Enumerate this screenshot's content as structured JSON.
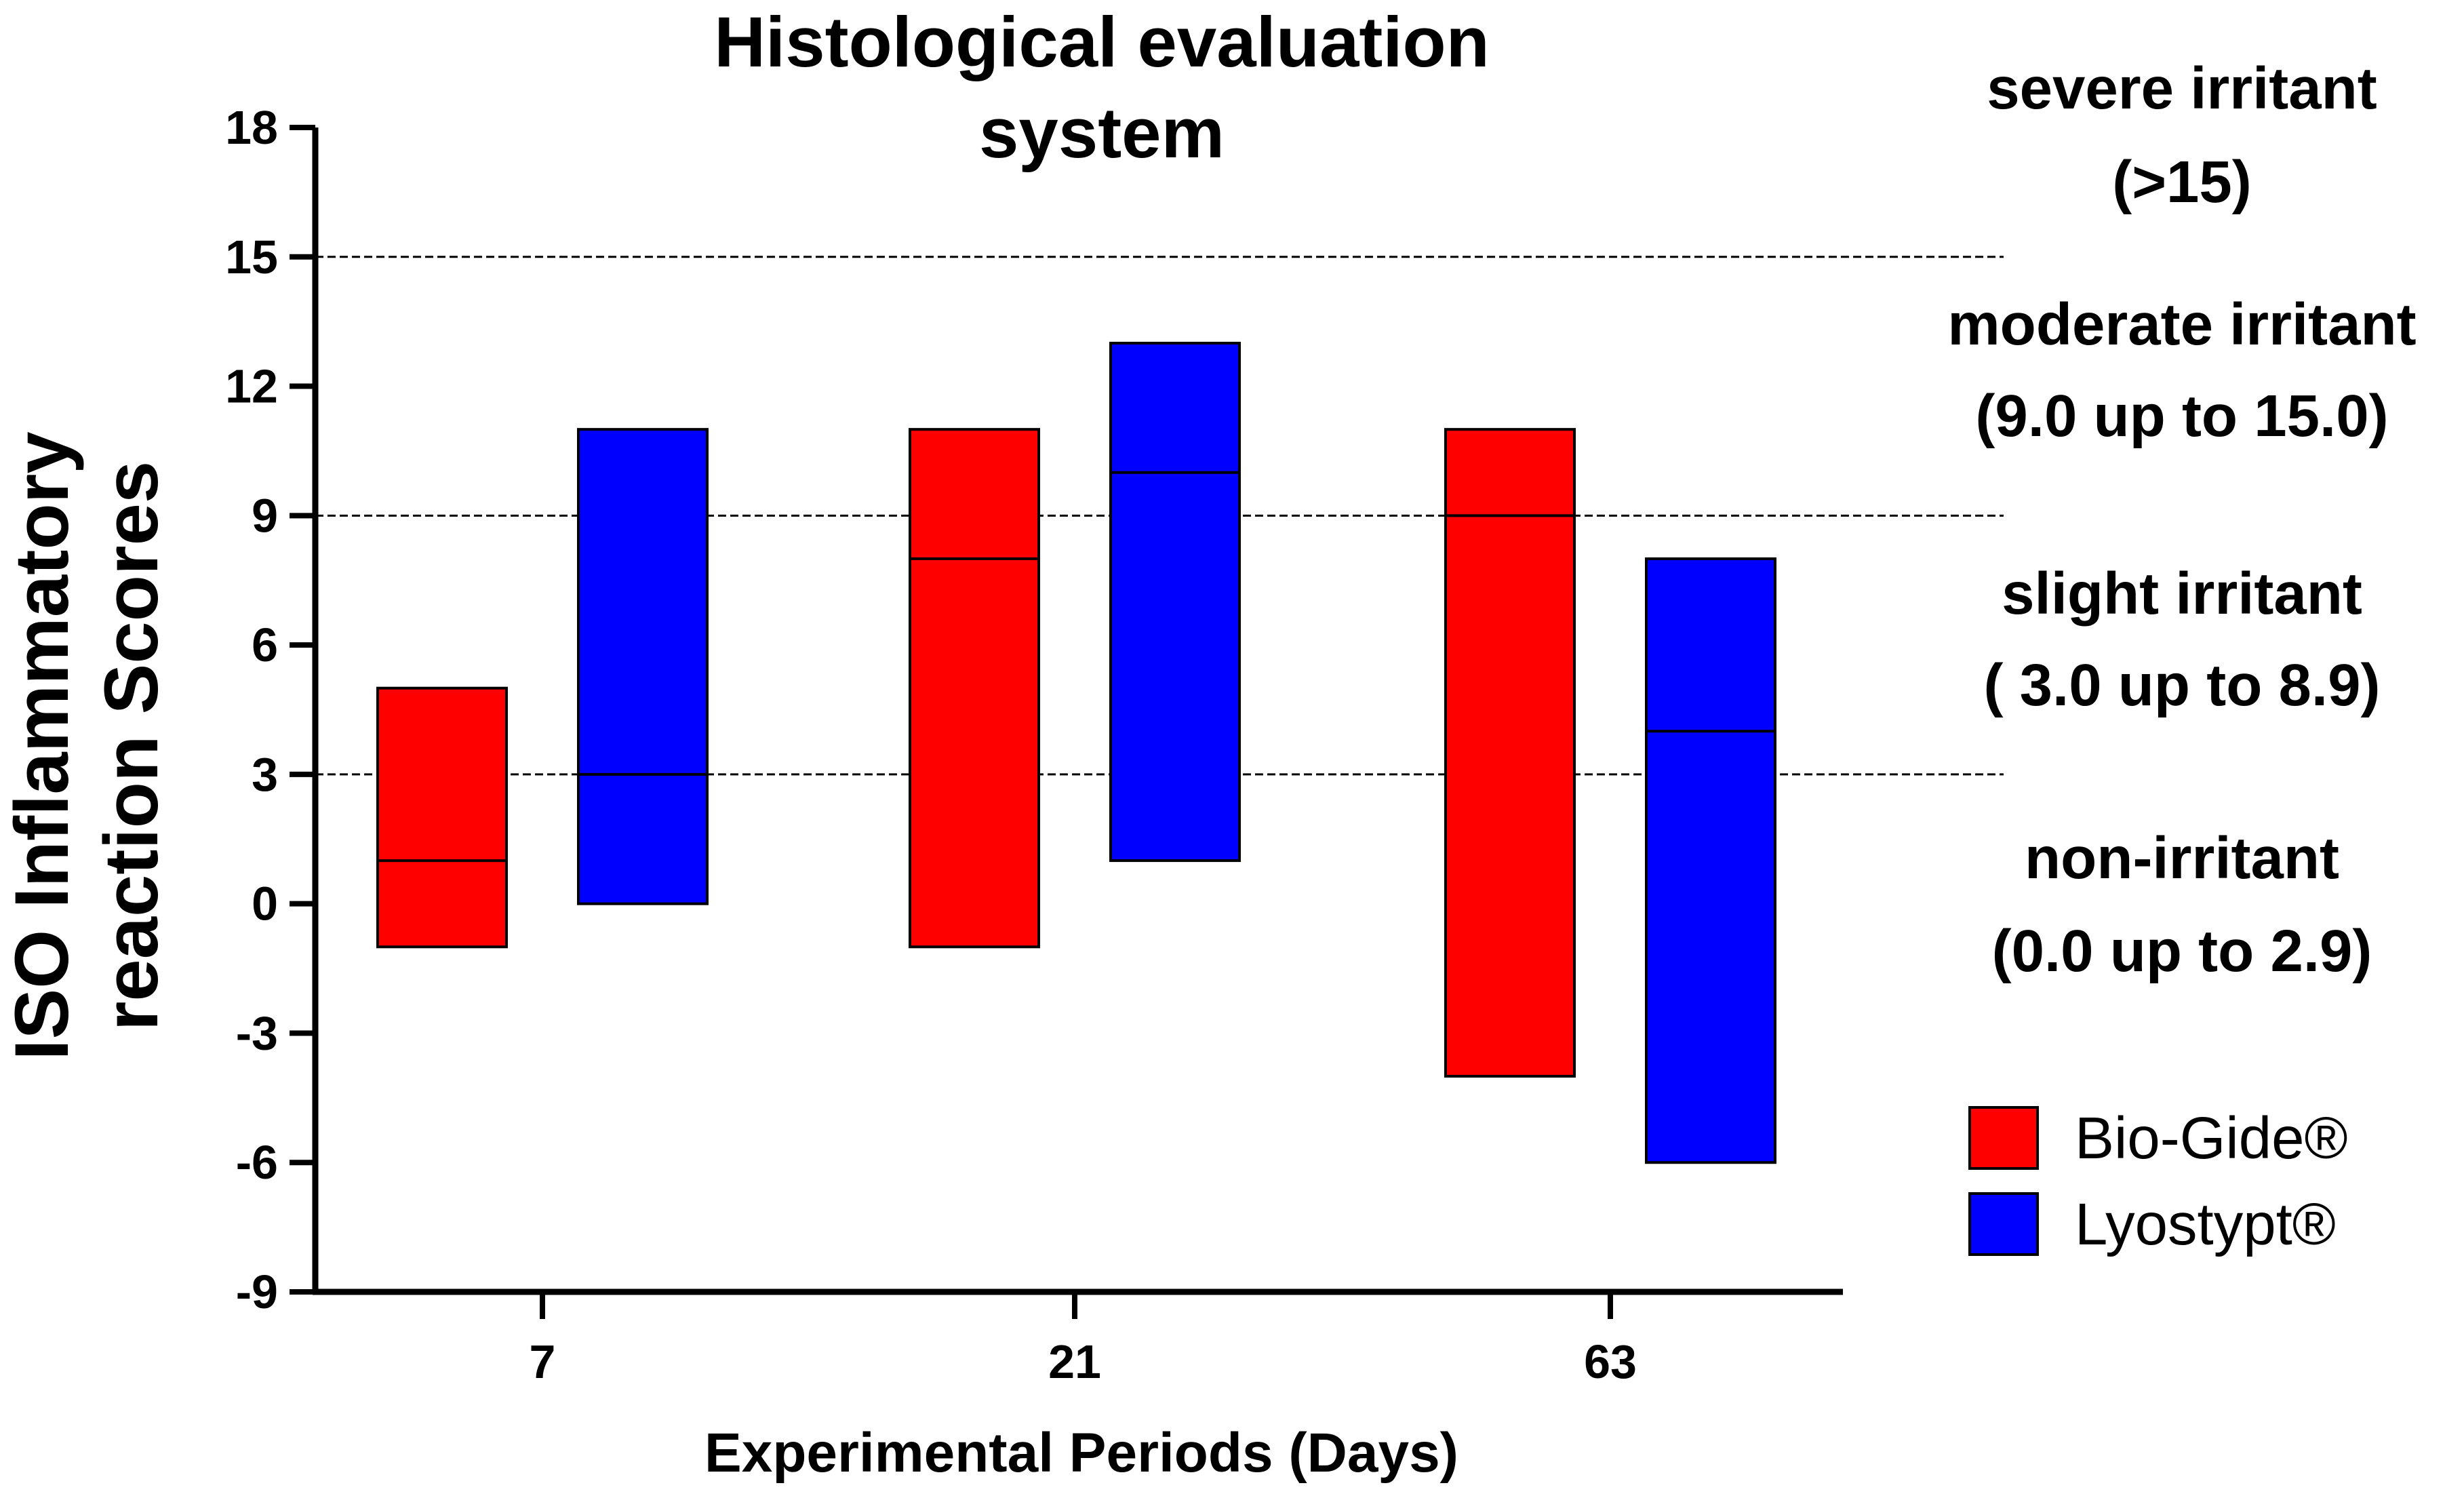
{
  "chart_data": {
    "type": "bar",
    "title_lines": [
      "Histological evaluation",
      "system"
    ],
    "xlabel": "Experimental Periods (Days)",
    "ylabel_lines": [
      "ISO Inflammatory",
      "reaction Scores"
    ],
    "categories": [
      "7",
      "21",
      "63"
    ],
    "ylim": [
      -9,
      18
    ],
    "yticks": [
      18,
      15,
      12,
      9,
      6,
      3,
      0,
      -3,
      -6,
      -9
    ],
    "reference_lines": [
      15,
      9,
      3
    ],
    "series": [
      {
        "name": "Bio-Gide®",
        "color": "#ff0000",
        "bars": [
          {
            "category": "7",
            "min": -1,
            "max": 5,
            "median": 1
          },
          {
            "category": "21",
            "min": -1,
            "max": 11,
            "median": 8
          },
          {
            "category": "63",
            "min": -4,
            "max": 11,
            "median": 9
          }
        ]
      },
      {
        "name": "Lyostypt®",
        "color": "#0000ff",
        "bars": [
          {
            "category": "7",
            "min": 0,
            "max": 11,
            "median": 3
          },
          {
            "category": "21",
            "min": 1,
            "max": 13,
            "median": 10
          },
          {
            "category": "63",
            "min": -6,
            "max": 8,
            "median": 4
          }
        ]
      }
    ],
    "bands": [
      {
        "lines": [
          "severe irritant",
          "(>15)"
        ]
      },
      {
        "lines": [
          "moderate irritant",
          "(9.0 up to 15.0)"
        ]
      },
      {
        "lines": [
          "slight irritant",
          "( 3.0 up to 8.9)"
        ]
      },
      {
        "lines": [
          "non-irritant",
          "(0.0 up to 2.9)"
        ]
      }
    ],
    "legend_position": "bottom-right",
    "grid": false
  }
}
